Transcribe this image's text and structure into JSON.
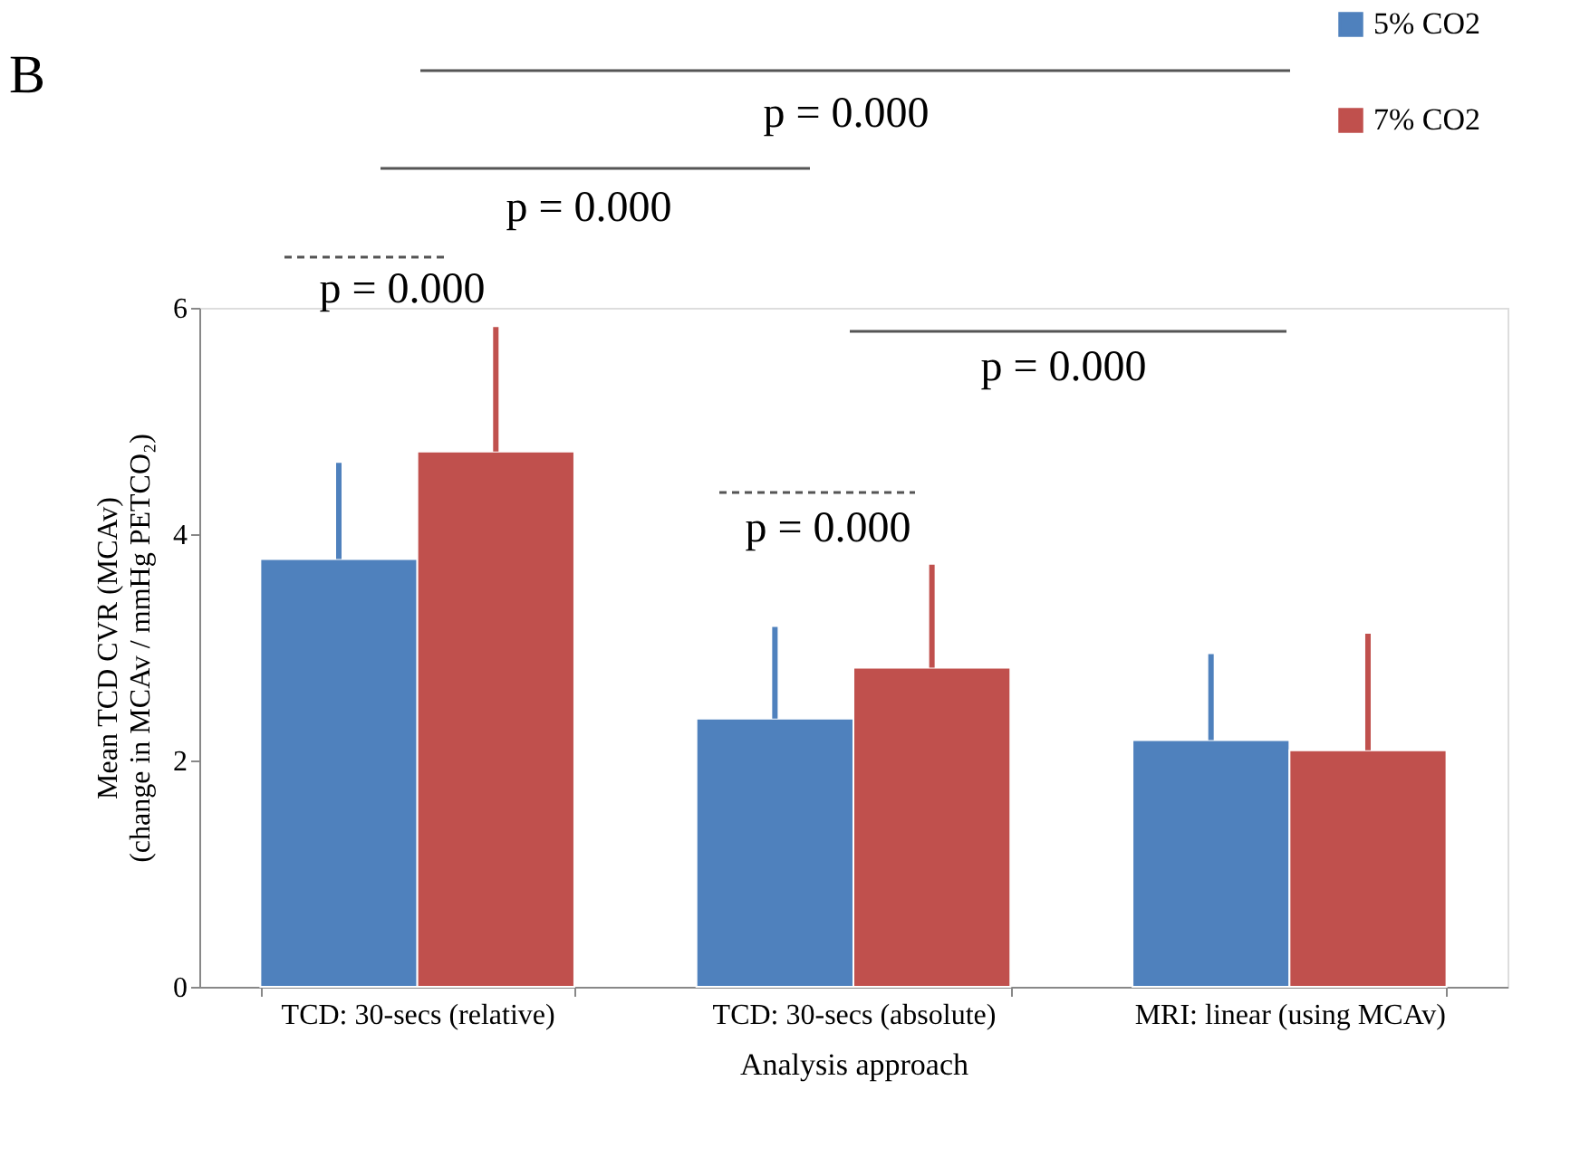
{
  "chart_data": {
    "type": "bar",
    "title": "B",
    "xlabel": "Analysis  approach",
    "ylabel": [
      "Mean  TCD CVR (MCAv)",
      "(change in MCAv / mmHg  PETCO₂)"
    ],
    "categories": [
      "TCD: 30-secs (relative)",
      "TCD: 30-secs (absolute)",
      "MRI: linear (using MCAv)"
    ],
    "series": [
      {
        "name": "5% CO2",
        "color": "#4f81bd",
        "values": [
          3.78,
          2.37,
          2.18
        ],
        "errors": [
          [
            3.78,
            4.63
          ],
          [
            2.37,
            3.18
          ],
          [
            2.18,
            2.94
          ]
        ]
      },
      {
        "name": "7% CO2",
        "color": "#c0504d",
        "values": [
          4.73,
          2.82,
          2.09
        ],
        "errors": [
          [
            4.73,
            5.83
          ],
          [
            2.82,
            3.73
          ],
          [
            2.09,
            3.12
          ]
        ]
      }
    ],
    "ylim": [
      0,
      6
    ],
    "yticks": [
      0,
      2,
      4,
      6
    ],
    "grid": false,
    "legend": "top right",
    "annotations": [
      "p = 0.000",
      "p = 0.000",
      "p = 0.000",
      "p = 0.000",
      "p = 0.000"
    ]
  }
}
